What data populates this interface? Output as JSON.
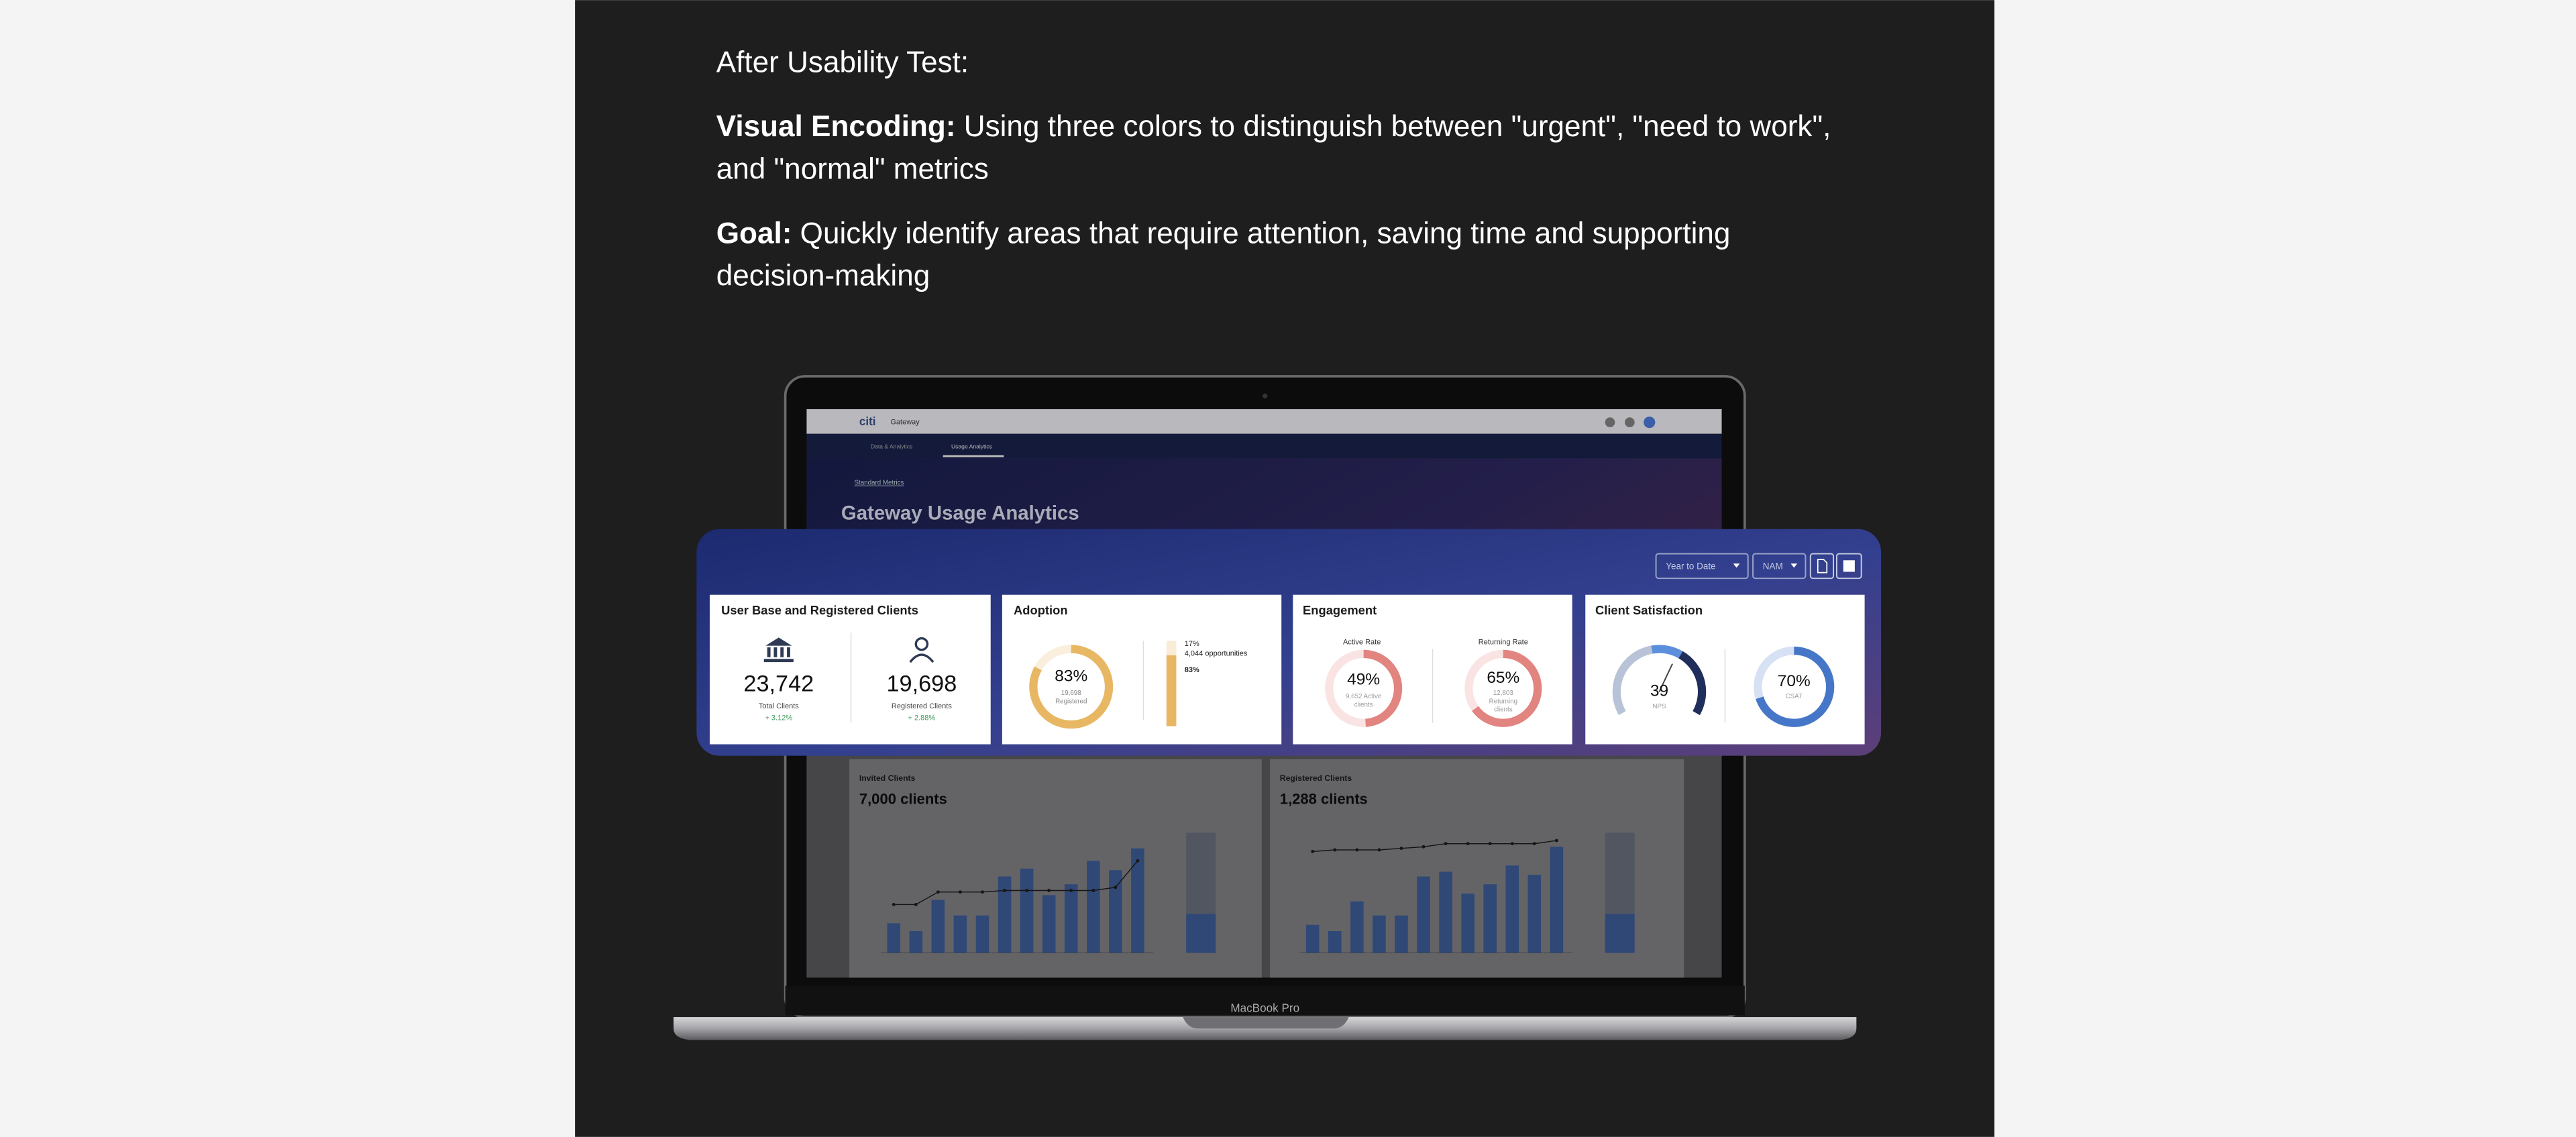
{
  "header": {
    "title": "After Usability Test:",
    "visual_encoding": {
      "label": "Visual Encoding:",
      "line1": "Using three colors to distinguish between \"urgent\", \"need to work\",",
      "line2": "and \"normal\" metrics"
    },
    "goal": {
      "label": "Goal:",
      "line1": "Quickly identify areas that require attention, saving time and supporting",
      "line2": "decision-making"
    }
  },
  "laptop": {
    "label": "MacBook Pro",
    "brand": "citi",
    "app": "Gateway",
    "tabs": [
      "Data & Analytics",
      "Usage Analytics"
    ],
    "breadcrumb": "Standard Metrics",
    "page_title": "Gateway Usage Analytics",
    "charts": [
      {
        "title": "Invited Clients",
        "total": "7,000 clients",
        "color": "#4a6fb5",
        "bars": [
          19,
          14,
          34,
          24,
          24,
          49,
          54,
          37,
          44,
          59,
          53,
          67
        ],
        "line": [
          31,
          31,
          39,
          39,
          39,
          40,
          40,
          40,
          40,
          40,
          42,
          59
        ],
        "stack": [
          25,
          52
        ]
      },
      {
        "title": "Registered Clients",
        "total": "1,288 clients",
        "color": "#4a6fb5",
        "bars": [
          18,
          14,
          33,
          24,
          24,
          49,
          52,
          38,
          44,
          56,
          50,
          68
        ],
        "line": [
          65,
          66,
          66,
          66,
          67,
          68,
          70,
          70,
          70,
          70,
          70,
          72
        ],
        "stack": [
          25,
          52
        ]
      }
    ]
  },
  "dashboard": {
    "filters": [
      "Year to Date",
      "NAM"
    ],
    "user_base": {
      "title": "User Base and Registered Clients",
      "total": {
        "value": "23,742",
        "label": "Total Clients",
        "change": "+ 3.12%"
      },
      "registered": {
        "value": "19,698",
        "label": "Registered Clients",
        "change": "+ 2.88%"
      }
    },
    "adoption": {
      "title": "Adoption",
      "color": "#e8b764",
      "donut": {
        "value": 83,
        "label": "83%",
        "count": "19,698",
        "caption": "Registered"
      },
      "bar": [
        {
          "value": 17,
          "label": "17%",
          "note": "4,044 opportunities"
        },
        {
          "value": 83,
          "label": "83%"
        }
      ]
    },
    "engagement": {
      "title": "Engagement",
      "color": "#e2847f",
      "active": {
        "title": "Active Rate",
        "value": 49,
        "label": "49%",
        "line1": "9,652 Active",
        "line2": "clients"
      },
      "returning": {
        "title": "Returning Rate",
        "value": 65,
        "label": "65%",
        "line1": "12,803",
        "line2": "Returning",
        "line3": "clients"
      }
    },
    "satisfaction": {
      "title": "Client Satisfaction",
      "color": "#4676c7",
      "nps": {
        "label": "39",
        "caption": "NPS"
      },
      "csat": {
        "value": 70,
        "label": "70%",
        "caption": "CSAT"
      }
    }
  }
}
